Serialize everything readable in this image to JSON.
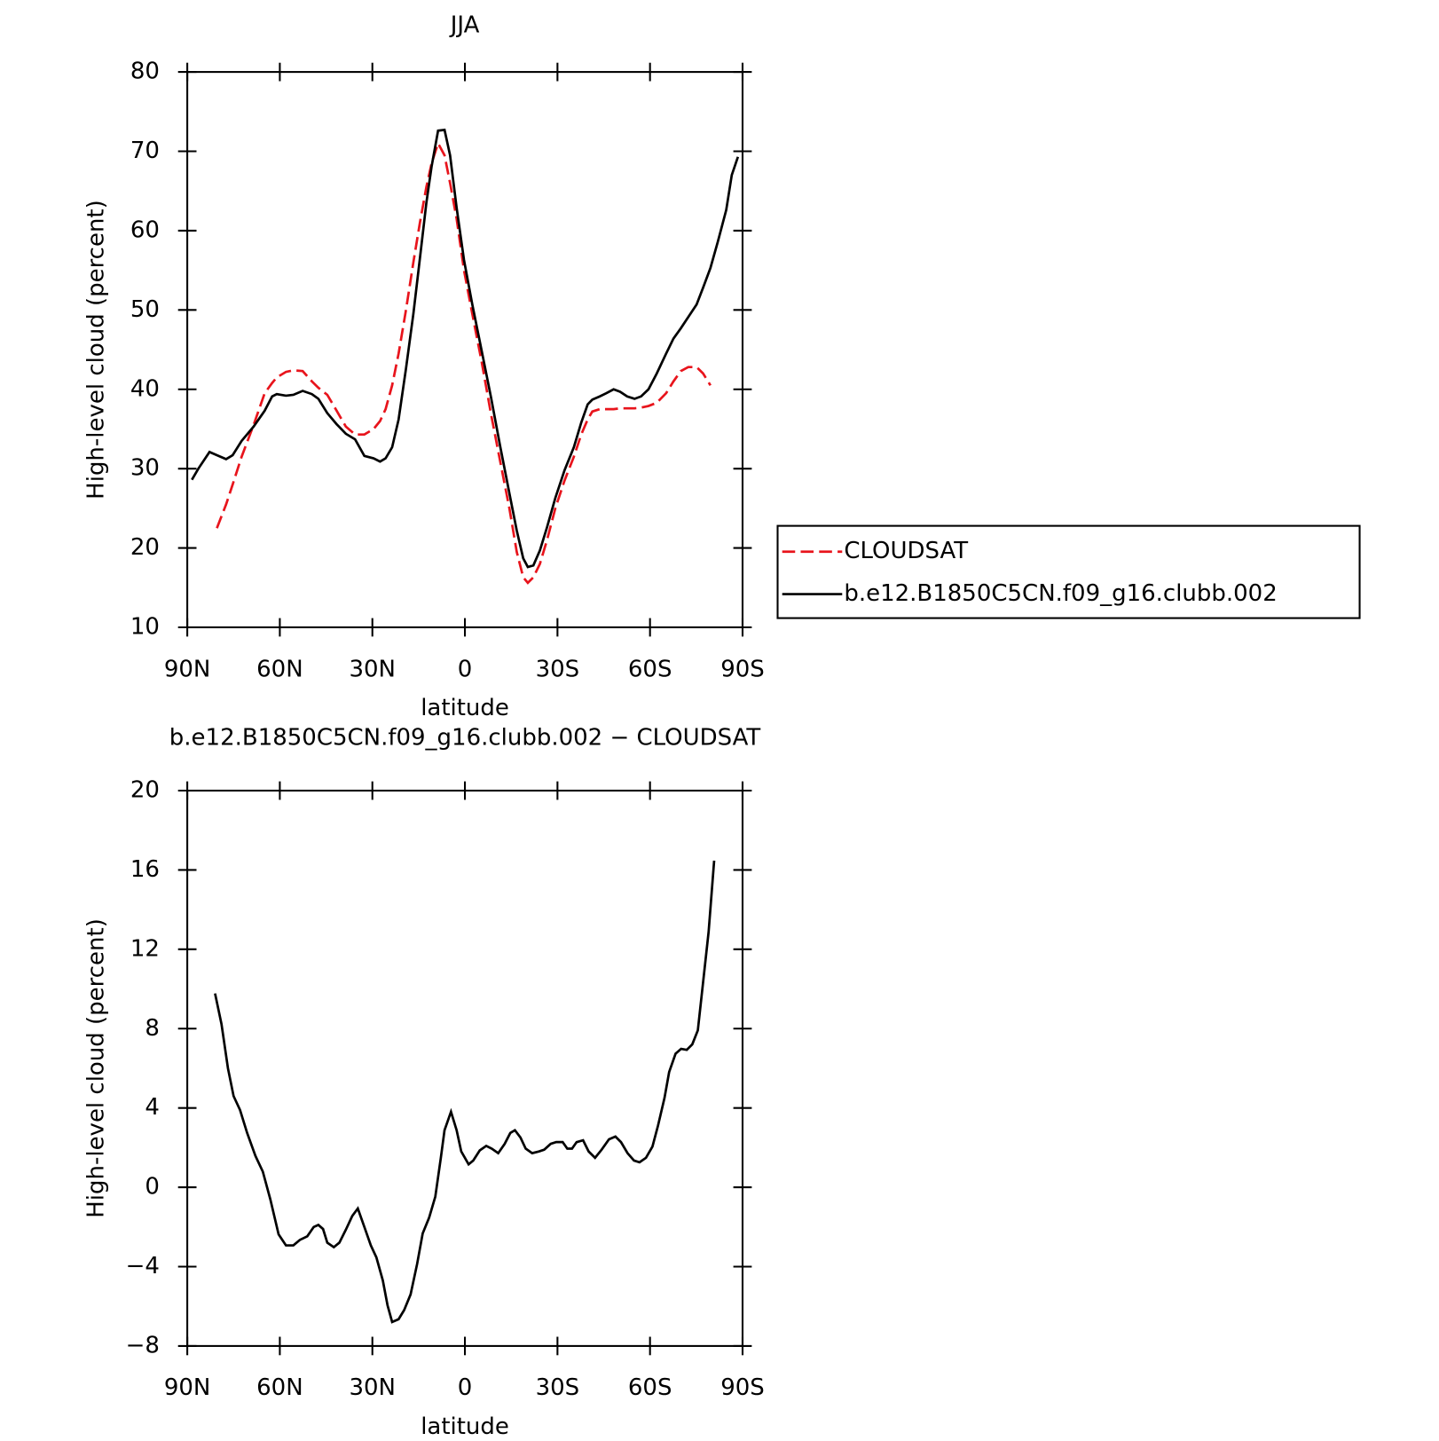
{
  "chart_data": [
    {
      "type": "line",
      "title": "JJA",
      "x_label": "latitude",
      "y_label": "High-level cloud (percent)",
      "x": [
        88.5,
        86.4,
        82.8,
        80.4,
        77.4,
        75.3,
        72.4,
        68.5,
        64.9,
        62.5,
        61.0,
        58.0,
        55.6,
        52.6,
        49.6,
        47.5,
        44.6,
        41.6,
        38.6,
        35.6,
        32.6,
        29.6,
        27.5,
        25.7,
        23.6,
        21.5,
        19.1,
        16.7,
        14.6,
        12.5,
        10.8,
        8.7,
        6.6,
        4.8,
        2.7,
        0.3,
        -2.4,
        -5.4,
        -8.4,
        -11.4,
        -14.4,
        -16.8,
        -18.9,
        -20.4,
        -22.2,
        -24.3,
        -26.6,
        -29.3,
        -32.3,
        -35.3,
        -37.7,
        -39.8,
        -41.3,
        -43.7,
        -45.8,
        -48.2,
        -50.3,
        -52.6,
        -55.0,
        -57.1,
        -59.5,
        -62.2,
        -65.2,
        -67.6,
        -70.0,
        -72.4,
        -75.1,
        -77.2,
        -79.6,
        -82.0,
        -84.7,
        -86.5,
        -88.5
      ],
      "series": [
        {
          "name": "CLOUDSAT",
          "color": "#e8141c",
          "dashed": true,
          "values": [
            null,
            null,
            null,
            22.5,
            25.5,
            28.0,
            31.5,
            35.5,
            39.5,
            40.8,
            41.5,
            42.2,
            42.4,
            42.3,
            41.0,
            40.2,
            39.3,
            37.3,
            35.3,
            34.3,
            34.3,
            35.0,
            36.0,
            37.5,
            40.5,
            44.5,
            50.0,
            56.0,
            61.0,
            65.5,
            68.5,
            71.0,
            69.5,
            66.0,
            61.5,
            55.0,
            49.5,
            43.5,
            37.0,
            31.0,
            25.0,
            19.5,
            16.3,
            15.6,
            16.3,
            18.0,
            21.0,
            25.0,
            28.5,
            31.5,
            34.3,
            36.2,
            37.2,
            37.5,
            37.5,
            37.5,
            37.6,
            37.6,
            37.6,
            37.7,
            37.9,
            38.3,
            39.5,
            41.0,
            42.3,
            42.8,
            42.8,
            42.0,
            40.5,
            null,
            null,
            null,
            null
          ]
        },
        {
          "name": "b.e12.B1850C5CN.f09_g16.clubb.002",
          "color": "#000000",
          "dashed": false,
          "values": [
            28.6,
            30.0,
            32.1,
            31.7,
            31.2,
            31.7,
            33.5,
            35.3,
            37.3,
            39.1,
            39.4,
            39.2,
            39.3,
            39.8,
            39.4,
            38.8,
            37.0,
            35.6,
            34.4,
            33.7,
            31.6,
            31.3,
            30.9,
            31.3,
            32.7,
            36.2,
            42.6,
            49.5,
            56.5,
            63.5,
            68.1,
            72.6,
            72.7,
            69.5,
            62.9,
            56.3,
            50.7,
            44.9,
            39.1,
            32.9,
            26.9,
            22.2,
            18.7,
            17.6,
            17.8,
            19.7,
            22.6,
            26.3,
            29.8,
            32.7,
            35.8,
            38.1,
            38.7,
            39.1,
            39.5,
            40.0,
            39.7,
            39.1,
            38.8,
            39.1,
            40.0,
            42.0,
            44.5,
            46.4,
            47.7,
            49.1,
            50.7,
            52.8,
            55.3,
            58.6,
            62.6,
            67.0,
            69.3
          ]
        }
      ],
      "xlim": [
        90,
        -90
      ],
      "xticks": [
        {
          "value": 90,
          "label": "90N"
        },
        {
          "value": 60,
          "label": "60N"
        },
        {
          "value": 30,
          "label": "30N"
        },
        0,
        {
          "value": -30,
          "label": "30S"
        },
        {
          "value": -60,
          "label": "60S"
        },
        {
          "value": -90,
          "label": "90S"
        }
      ],
      "ylim": [
        10,
        80
      ],
      "yticks": [
        10,
        20,
        30,
        40,
        50,
        60,
        70,
        80
      ],
      "legend": "right"
    },
    {
      "type": "line",
      "title": "b.e12.B1850C5CN.f09_g16.clubb.002 − CLOUDSAT",
      "x_label": "latitude",
      "y_label": "High-level cloud (percent)",
      "x": [
        81.0,
        78.9,
        76.8,
        75.0,
        72.9,
        70.6,
        67.9,
        65.5,
        63.1,
        60.4,
        58.0,
        55.6,
        53.5,
        51.1,
        49.0,
        47.5,
        46.0,
        44.6,
        42.5,
        40.7,
        38.6,
        36.5,
        34.7,
        32.6,
        30.5,
        28.7,
        26.6,
        25.1,
        23.6,
        21.5,
        19.7,
        17.6,
        15.5,
        13.7,
        11.6,
        9.6,
        7.8,
        6.6,
        4.5,
        2.7,
        1.2,
        -1.2,
        -2.7,
        -4.8,
        -6.9,
        -8.7,
        -10.8,
        -12.9,
        -14.7,
        -16.2,
        -18.0,
        -19.7,
        -21.8,
        -24.0,
        -25.7,
        -27.8,
        -29.6,
        -31.7,
        -33.2,
        -34.7,
        -36.2,
        -38.3,
        -40.1,
        -42.2,
        -44.3,
        -46.7,
        -48.8,
        -50.6,
        -52.7,
        -54.8,
        -56.6,
        -58.7,
        -60.8,
        -62.6,
        -64.7,
        -66.2,
        -68.3,
        -70.1,
        -71.9,
        -73.7,
        -75.5,
        -77.2,
        -79.0,
        -80.8
      ],
      "values": [
        9.77,
        8.23,
        6.0,
        4.6,
        3.9,
        2.74,
        1.58,
        0.79,
        -0.6,
        -2.37,
        -2.93,
        -2.93,
        -2.65,
        -2.47,
        -2.0,
        -1.9,
        -2.1,
        -2.79,
        -3.02,
        -2.79,
        -2.14,
        -1.44,
        -1.07,
        -2.0,
        -2.93,
        -3.53,
        -4.7,
        -5.95,
        -6.79,
        -6.65,
        -6.19,
        -5.4,
        -3.86,
        -2.33,
        -1.53,
        -0.47,
        1.49,
        2.88,
        3.81,
        2.88,
        1.81,
        1.16,
        1.35,
        1.86,
        2.09,
        1.95,
        1.72,
        2.19,
        2.74,
        2.88,
        2.51,
        1.95,
        1.72,
        1.81,
        1.9,
        2.19,
        2.28,
        2.28,
        1.95,
        1.95,
        2.28,
        2.37,
        1.81,
        1.49,
        1.9,
        2.42,
        2.56,
        2.28,
        1.72,
        1.35,
        1.26,
        1.49,
        2.05,
        3.12,
        4.51,
        5.81,
        6.74,
        6.98,
        6.93,
        7.21,
        7.91,
        10.33,
        12.88,
        16.47
      ],
      "color": "#000000",
      "xlim": [
        90,
        -90
      ],
      "xticks": [
        {
          "value": 90,
          "label": "90N"
        },
        {
          "value": 60,
          "label": "60N"
        },
        {
          "value": 30,
          "label": "30N"
        },
        0,
        {
          "value": -30,
          "label": "30S"
        },
        {
          "value": -60,
          "label": "60S"
        },
        {
          "value": -90,
          "label": "90S"
        }
      ],
      "ylim": [
        -8,
        20
      ],
      "yticks": [
        {
          "value": -8,
          "label": "−8"
        },
        {
          "value": -4,
          "label": "−4"
        },
        0,
        4,
        8,
        12,
        16,
        20
      ]
    }
  ]
}
